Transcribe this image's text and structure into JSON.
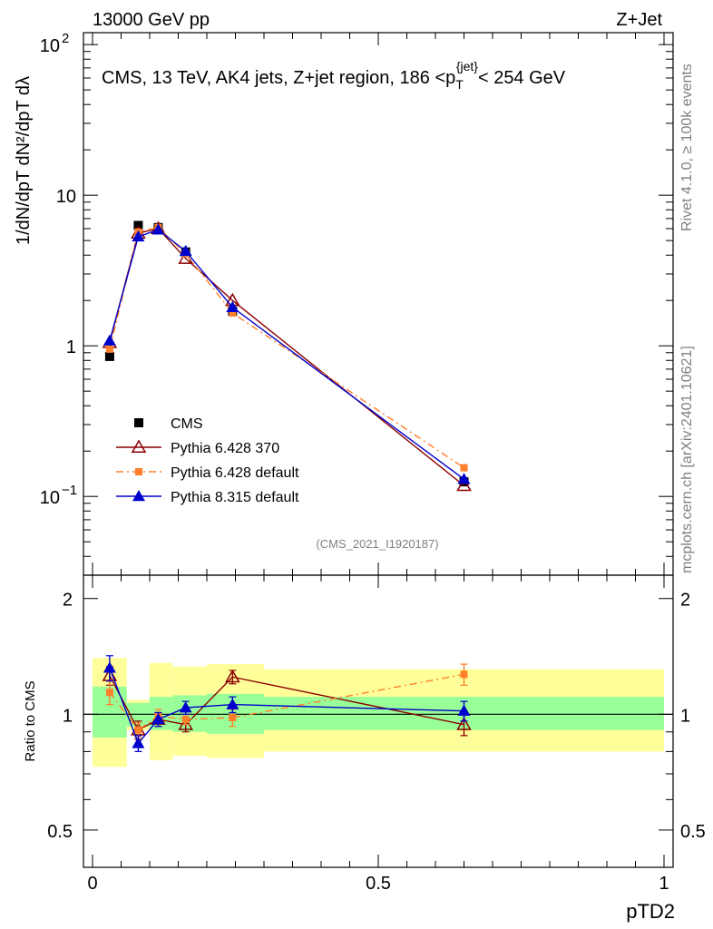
{
  "header": {
    "left": "13000 GeV pp",
    "right": "Z+Jet"
  },
  "side": {
    "rivet": "Rivet 4.1.0, ≥ 100k events",
    "mcplots": "mcplots.cern.ch [arXiv:2401.10621]"
  },
  "chart_data": {
    "type": "line",
    "title": "CMS, 13 TeV, AK4 jets, Z+jet region, 186 <pT{jet}< 254 GeV",
    "title_parts": {
      "main": "CMS, 13 TeV, AK4 jets, Z+jet region, 186 <p",
      "sub": "T",
      "sup": "{jet}",
      "tail": "< 254 GeV"
    },
    "watermark": "(CMS_2021_I1920187)",
    "xlabel": "pTD2",
    "ylabel_main": "1/dN/dpT dN²/dpT dλ",
    "ylabel_ratio": "Ratio to CMS",
    "xlim": [
      0,
      1
    ],
    "ylim_main": [
      0.03,
      120
    ],
    "yscale_main": "log",
    "ylim_ratio": [
      0.4,
      2.3
    ],
    "yscale_ratio": "log",
    "x_ticks": [
      "0",
      "0.5",
      "1"
    ],
    "y_ticks_main": [
      {
        "value": 0.1,
        "base": "10",
        "exp": "−1"
      },
      {
        "value": 1,
        "base": "1",
        "exp": ""
      },
      {
        "value": 10,
        "base": "10",
        "exp": ""
      },
      {
        "value": 100,
        "base": "10",
        "exp": "2"
      }
    ],
    "y_ticks_ratio": [
      "0.5",
      "1",
      "2"
    ],
    "bins": [
      0.0,
      0.06,
      0.1,
      0.14,
      0.2,
      0.3,
      1.0
    ],
    "x": [
      0.03,
      0.08,
      0.115,
      0.163,
      0.245,
      0.65
    ],
    "band_ratio_green": [
      [
        0.87,
        1.18
      ],
      [
        0.93,
        1.07
      ],
      [
        0.91,
        1.11
      ],
      [
        0.9,
        1.12
      ],
      [
        0.89,
        1.13
      ],
      [
        0.91,
        1.11
      ]
    ],
    "band_ratio_yellow": [
      [
        0.73,
        1.4
      ],
      [
        0.91,
        1.09
      ],
      [
        0.76,
        1.36
      ],
      [
        0.78,
        1.33
      ],
      [
        0.77,
        1.35
      ],
      [
        0.8,
        1.31
      ]
    ],
    "series": [
      {
        "name": "CMS",
        "style": "data",
        "color": "#000000",
        "values": [
          0.85,
          6.3,
          6.1,
          4.2,
          1.7,
          0.125
        ]
      },
      {
        "name": "Pythia 6.428 370",
        "style": "open-triangle",
        "color": "#8b0000",
        "values": [
          1.05,
          5.6,
          6.0,
          3.8,
          2.0,
          0.118
        ],
        "ratio": [
          1.26,
          0.91,
          0.97,
          0.94,
          1.25,
          0.94
        ],
        "ratio_err": [
          0.07,
          0.05,
          0.04,
          0.04,
          0.05,
          0.06
        ]
      },
      {
        "name": "Pythia 6.428 default",
        "style": "square-dashed",
        "color": "#ff7f2a",
        "values": [
          0.95,
          5.7,
          6.1,
          4.1,
          1.65,
          0.155
        ],
        "ratio": [
          1.14,
          0.91,
          0.99,
          0.97,
          0.98,
          1.27
        ],
        "ratio_err": [
          0.08,
          0.04,
          0.04,
          0.03,
          0.05,
          0.08
        ]
      },
      {
        "name": "Pythia 8.315 default",
        "style": "filled-triangle",
        "color": "#0000cd",
        "values": [
          1.08,
          5.3,
          5.9,
          4.25,
          1.8,
          0.13
        ],
        "ratio": [
          1.32,
          0.84,
          0.97,
          1.04,
          1.06,
          1.02
        ],
        "ratio_err": [
          0.1,
          0.04,
          0.04,
          0.04,
          0.05,
          0.06
        ]
      }
    ]
  }
}
